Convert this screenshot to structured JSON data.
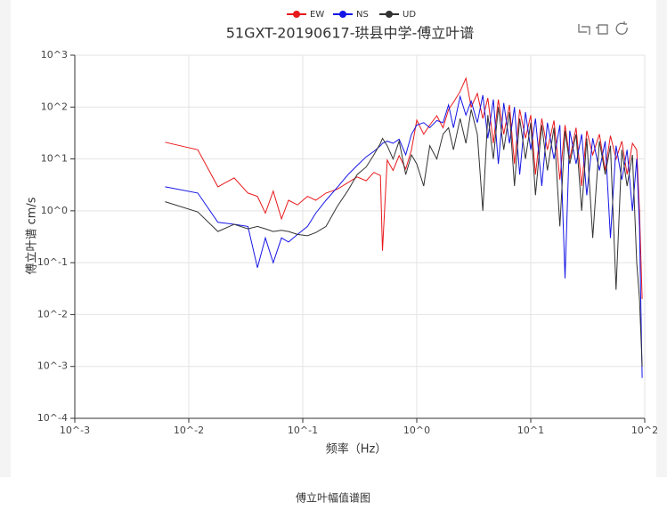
{
  "chart_data": {
    "type": "line",
    "title": "51GXT-20190617-珙县中学-傅立叶谱",
    "xlabel": "频率（Hz）",
    "ylabel": "傅立叶谱 cm/s",
    "caption": "傅立叶幅值谱图",
    "log_x": true,
    "log_y": true,
    "grid": true,
    "xlim": [
      0.001,
      100
    ],
    "ylim": [
      0.0001,
      1000
    ],
    "xticks": [
      {
        "value": 0.001,
        "label": "10^-3"
      },
      {
        "value": 0.01,
        "label": "10^-2"
      },
      {
        "value": 0.1,
        "label": "10^-1"
      },
      {
        "value": 1,
        "label": "10^0"
      },
      {
        "value": 10,
        "label": "10^1"
      },
      {
        "value": 100,
        "label": "10^2"
      }
    ],
    "yticks": [
      {
        "value": 0.0001,
        "label": "10^-4"
      },
      {
        "value": 0.001,
        "label": "10^-3"
      },
      {
        "value": 0.01,
        "label": "10^-2"
      },
      {
        "value": 0.1,
        "label": "10^-1"
      },
      {
        "value": 1,
        "label": "10^0"
      },
      {
        "value": 10,
        "label": "10^1"
      },
      {
        "value": 100,
        "label": "10^2"
      },
      {
        "value": 1000,
        "label": "10^3"
      }
    ],
    "x": [
      0.0062,
      0.012,
      0.018,
      0.025,
      0.033,
      0.04,
      0.047,
      0.055,
      0.065,
      0.075,
      0.09,
      0.11,
      0.13,
      0.16,
      0.2,
      0.25,
      0.3,
      0.36,
      0.42,
      0.48,
      0.5,
      0.55,
      0.62,
      0.7,
      0.8,
      0.9,
      1.0,
      1.15,
      1.3,
      1.5,
      1.7,
      1.9,
      2.1,
      2.4,
      2.7,
      3.0,
      3.4,
      3.8,
      4.2,
      4.7,
      5.2,
      5.8,
      6.5,
      7.2,
      8,
      9,
      10,
      11,
      12.5,
      14,
      16,
      18,
      20,
      22,
      25,
      28,
      31,
      35,
      40,
      45,
      50,
      56,
      63,
      70,
      78,
      85,
      90,
      95
    ],
    "series": [
      {
        "name": "EW",
        "color": "#e8191c",
        "values": [
          21,
          15,
          2.9,
          4.3,
          2.2,
          1.9,
          0.9,
          2.4,
          0.7,
          1.6,
          1.3,
          1.9,
          1.6,
          2.2,
          2.6,
          3.5,
          4.5,
          3.8,
          5.5,
          4.8,
          0.17,
          9.5,
          6,
          11.6,
          6.4,
          15,
          56,
          30,
          45,
          68,
          40,
          90,
          123,
          200,
          360,
          100,
          183,
          60,
          150,
          20,
          140,
          30,
          110,
          8,
          90,
          25,
          70,
          5,
          60,
          15,
          55,
          4,
          45,
          10,
          40,
          3,
          35,
          12,
          30,
          6,
          28,
          10,
          22,
          5,
          20,
          15,
          1,
          0.02
        ]
      },
      {
        "name": "NS",
        "color": "#1515e6",
        "values": [
          2.9,
          2.2,
          0.6,
          0.55,
          0.5,
          0.08,
          0.3,
          0.1,
          0.3,
          0.25,
          0.35,
          0.5,
          0.9,
          1.6,
          2.8,
          5,
          7.5,
          11,
          14,
          18,
          20,
          22,
          20,
          24,
          12,
          30,
          45,
          50,
          40,
          55,
          50,
          110,
          40,
          160,
          70,
          130,
          50,
          170,
          25,
          140,
          8,
          120,
          20,
          100,
          5,
          80,
          15,
          60,
          3,
          50,
          10,
          45,
          0.05,
          35,
          8,
          30,
          2,
          25,
          6,
          22,
          0.3,
          18,
          4,
          15,
          1,
          10,
          0.5,
          0.0006
        ]
      },
      {
        "name": "UD",
        "color": "#333333",
        "values": [
          1.5,
          0.95,
          0.4,
          0.55,
          0.45,
          0.5,
          0.45,
          0.4,
          0.42,
          0.4,
          0.35,
          0.33,
          0.38,
          0.5,
          1.2,
          2.5,
          5,
          7,
          12,
          20,
          25,
          18,
          10,
          22,
          5,
          12,
          8,
          3,
          18,
          10,
          30,
          40,
          15,
          60,
          20,
          90,
          30,
          1,
          70,
          10,
          100,
          15,
          80,
          3,
          60,
          10,
          50,
          2,
          45,
          6,
          40,
          0.5,
          35,
          8,
          30,
          1,
          25,
          0.3,
          22,
          5,
          18,
          0.03,
          15,
          3,
          12,
          0.1,
          0.02,
          0.001
        ]
      }
    ]
  }
}
